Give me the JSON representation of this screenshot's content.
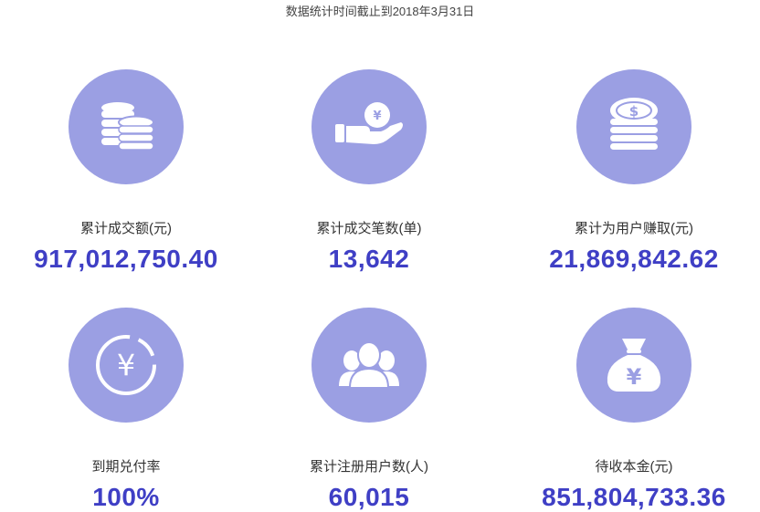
{
  "note": "数据统计时间截止到2018年3月31日",
  "accent_color": "#9b9fe3",
  "value_color": "#3f3fc5",
  "stats": [
    {
      "label": "累计成交额(元)",
      "value": "917,012,750.40",
      "icon": "coins-stack-icon"
    },
    {
      "label": "累计成交笔数(单)",
      "value": "13,642",
      "icon": "hand-yuan-icon"
    },
    {
      "label": "累计为用户赚取(元)",
      "value": "21,869,842.62",
      "icon": "dollar-coin-stack-icon"
    },
    {
      "label": "到期兑付率",
      "value": "100%",
      "icon": "yuan-cycle-icon"
    },
    {
      "label": "累计注册用户数(人)",
      "value": "60,015",
      "icon": "users-group-icon"
    },
    {
      "label": "待收本金(元)",
      "value": "851,804,733.36",
      "icon": "money-bag-icon"
    }
  ]
}
